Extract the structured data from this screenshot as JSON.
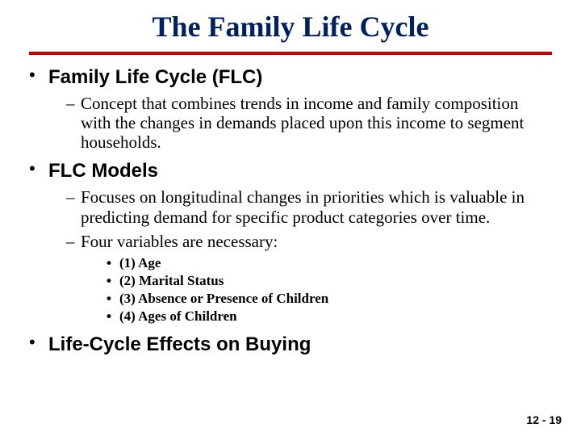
{
  "title": "The Family Life Cycle",
  "colors": {
    "title": "#002060",
    "rule": "#c00000",
    "text": "#000000",
    "bg": "#ffffff"
  },
  "bullets": [
    {
      "heading": "Family Life Cycle (FLC)",
      "subs": [
        {
          "text": "Concept that combines trends in income and family composition with the changes in demands placed upon this income to segment households."
        }
      ]
    },
    {
      "heading": "FLC Models",
      "subs": [
        {
          "text": "Focuses on longitudinal changes in priorities which is valuable in predicting demand for specific product categories over time."
        },
        {
          "text": "Four variables are necessary:",
          "subsubs": [
            "(1) Age",
            "(2) Marital Status",
            "(3) Absence or Presence of Children",
            "(4) Ages of Children"
          ]
        }
      ]
    },
    {
      "heading": "Life-Cycle Effects on Buying",
      "subs": []
    }
  ],
  "footer": "12 - 19"
}
